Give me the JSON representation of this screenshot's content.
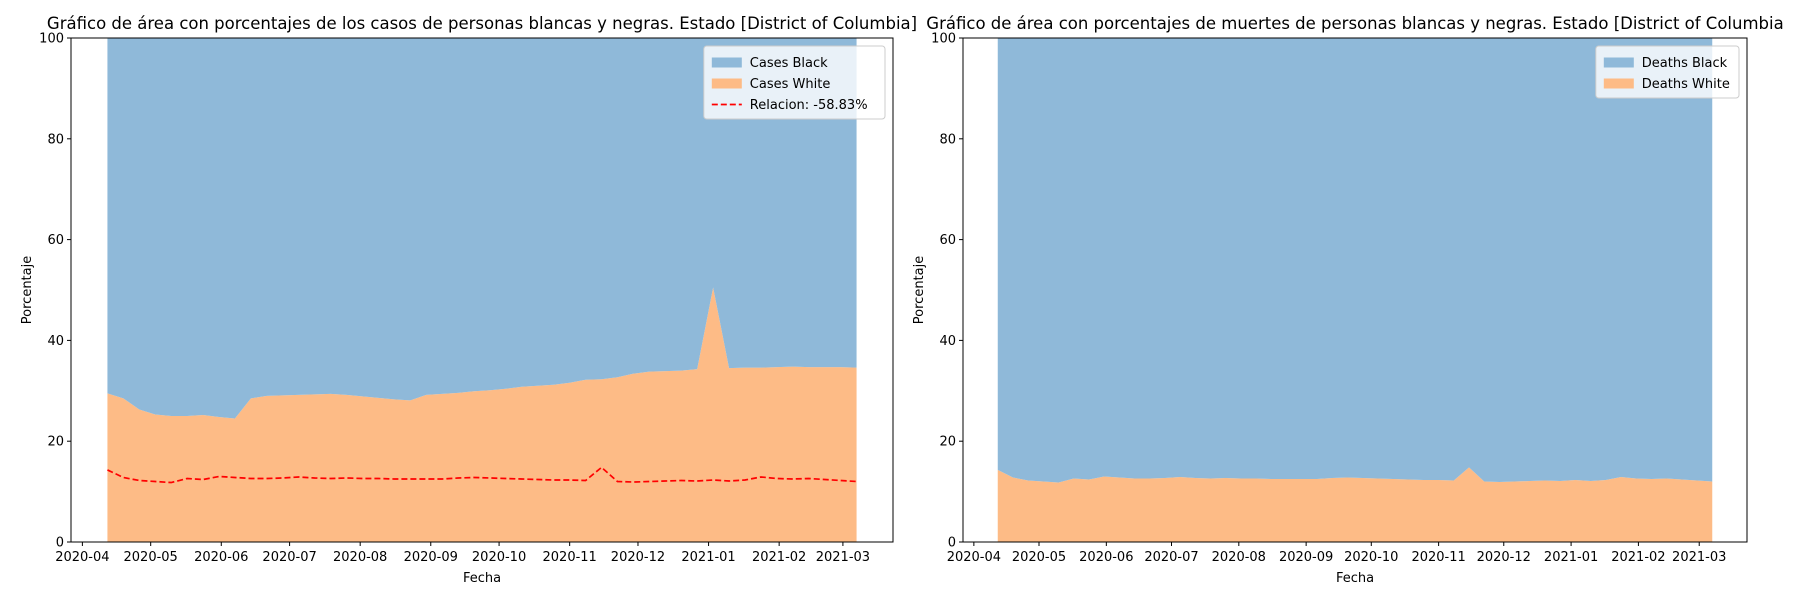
{
  "chart_data": [
    {
      "type": "area",
      "stacked": true,
      "title": "Gráfico de área con porcentajes de los casos de personas blancas y negras. Estado [District of Columbia]",
      "x_label": "Fecha",
      "y_label": "Porcentaje",
      "x": [
        "2020-04-12",
        "2020-04-19",
        "2020-04-26",
        "2020-05-03",
        "2020-05-10",
        "2020-05-17",
        "2020-05-24",
        "2020-05-31",
        "2020-06-07",
        "2020-06-14",
        "2020-06-21",
        "2020-06-28",
        "2020-07-05",
        "2020-07-12",
        "2020-07-19",
        "2020-07-26",
        "2020-08-02",
        "2020-08-09",
        "2020-08-16",
        "2020-08-23",
        "2020-08-30",
        "2020-09-06",
        "2020-09-13",
        "2020-09-20",
        "2020-09-27",
        "2020-10-04",
        "2020-10-11",
        "2020-10-18",
        "2020-10-25",
        "2020-11-01",
        "2020-11-08",
        "2020-11-15",
        "2020-11-22",
        "2020-11-29",
        "2020-12-06",
        "2020-12-13",
        "2020-12-20",
        "2020-12-27",
        "2021-01-03",
        "2021-01-10",
        "2021-01-17",
        "2021-01-24",
        "2021-01-31",
        "2021-02-07",
        "2021-02-14",
        "2021-02-21",
        "2021-02-28",
        "2021-03-07"
      ],
      "series": [
        {
          "name": "Cases Black",
          "color": "#8fb9d9",
          "values": [
            70.5,
            71.5,
            73.7,
            74.7,
            75.0,
            75.0,
            74.8,
            75.2,
            75.5,
            71.5,
            71.0,
            70.9,
            70.8,
            70.7,
            70.6,
            70.8,
            71.1,
            71.4,
            71.7,
            71.9,
            70.8,
            70.6,
            70.4,
            70.1,
            69.9,
            69.6,
            69.2,
            69.0,
            68.8,
            68.4,
            67.8,
            67.7,
            67.3,
            66.6,
            66.2,
            66.1,
            66.0,
            65.7,
            49.5,
            65.5,
            65.4,
            65.4,
            65.3,
            65.2,
            65.3,
            65.3,
            65.3,
            65.4
          ]
        },
        {
          "name": "Cases White",
          "color": "#fdbb86",
          "values": [
            29.5,
            28.5,
            26.3,
            25.3,
            25.0,
            25.0,
            25.2,
            24.8,
            24.5,
            28.5,
            29.0,
            29.1,
            29.2,
            29.3,
            29.4,
            29.2,
            28.9,
            28.6,
            28.3,
            28.1,
            29.2,
            29.4,
            29.6,
            29.9,
            30.1,
            30.4,
            30.8,
            31.0,
            31.2,
            31.6,
            32.2,
            32.3,
            32.7,
            33.4,
            33.8,
            33.9,
            34.0,
            34.3,
            50.5,
            34.5,
            34.6,
            34.6,
            34.7,
            34.8,
            34.7,
            34.7,
            34.7,
            34.6
          ]
        },
        {
          "name": "Relacion: -58.83%",
          "type": "line",
          "style": "dashed",
          "color": "#ff0000",
          "values": [
            14.3,
            12.8,
            12.2,
            12.0,
            11.8,
            12.6,
            12.4,
            13.0,
            12.8,
            12.6,
            12.6,
            12.7,
            12.9,
            12.7,
            12.6,
            12.7,
            12.6,
            12.6,
            12.5,
            12.5,
            12.5,
            12.5,
            12.7,
            12.8,
            12.7,
            12.6,
            12.5,
            12.4,
            12.3,
            12.3,
            12.2,
            14.8,
            12.0,
            11.9,
            12.0,
            12.1,
            12.2,
            12.1,
            12.3,
            12.1,
            12.3,
            12.9,
            12.6,
            12.5,
            12.6,
            12.4,
            12.2,
            12.0
          ]
        }
      ],
      "xlim": [
        "2020-03-27",
        "2021-03-23"
      ],
      "xticks": [
        {
          "value": "2020-04-01",
          "label": "2020-04"
        },
        {
          "value": "2020-05-01",
          "label": "2020-05"
        },
        {
          "value": "2020-06-01",
          "label": "2020-06"
        },
        {
          "value": "2020-07-01",
          "label": "2020-07"
        },
        {
          "value": "2020-08-01",
          "label": "2020-08"
        },
        {
          "value": "2020-09-01",
          "label": "2020-09"
        },
        {
          "value": "2020-10-01",
          "label": "2020-10"
        },
        {
          "value": "2020-11-01",
          "label": "2020-11"
        },
        {
          "value": "2020-12-01",
          "label": "2020-12"
        },
        {
          "value": "2021-01-01",
          "label": "2021-01"
        },
        {
          "value": "2021-02-01",
          "label": "2021-02"
        },
        {
          "value": "2021-03-01",
          "label": "2021-03"
        }
      ],
      "ylim": [
        0,
        100
      ],
      "yticks": [
        0,
        20,
        40,
        60,
        80,
        100
      ],
      "legend": "upper right"
    },
    {
      "type": "area",
      "stacked": true,
      "title": "Gráfico de área con porcentajes de muertes de personas blancas y negras. Estado [District of Columbia",
      "x_label": "Fecha",
      "y_label": "Porcentaje",
      "x": [
        "2020-04-12",
        "2020-04-19",
        "2020-04-26",
        "2020-05-03",
        "2020-05-10",
        "2020-05-17",
        "2020-05-24",
        "2020-05-31",
        "2020-06-07",
        "2020-06-14",
        "2020-06-21",
        "2020-06-28",
        "2020-07-05",
        "2020-07-12",
        "2020-07-19",
        "2020-07-26",
        "2020-08-02",
        "2020-08-09",
        "2020-08-16",
        "2020-08-23",
        "2020-08-30",
        "2020-09-06",
        "2020-09-13",
        "2020-09-20",
        "2020-09-27",
        "2020-10-04",
        "2020-10-11",
        "2020-10-18",
        "2020-10-25",
        "2020-11-01",
        "2020-11-08",
        "2020-11-15",
        "2020-11-22",
        "2020-11-29",
        "2020-12-06",
        "2020-12-13",
        "2020-12-20",
        "2020-12-27",
        "2021-01-03",
        "2021-01-10",
        "2021-01-17",
        "2021-01-24",
        "2021-01-31",
        "2021-02-07",
        "2021-02-14",
        "2021-02-21",
        "2021-02-28",
        "2021-03-07"
      ],
      "series": [
        {
          "name": "Deaths Black",
          "color": "#8fb9d9",
          "values": [
            85.7,
            87.2,
            87.8,
            88.0,
            88.2,
            87.4,
            87.6,
            87.0,
            87.2,
            87.4,
            87.4,
            87.3,
            87.1,
            87.3,
            87.4,
            87.3,
            87.4,
            87.4,
            87.5,
            87.5,
            87.5,
            87.5,
            87.3,
            87.2,
            87.3,
            87.4,
            87.5,
            87.6,
            87.7,
            87.7,
            87.8,
            85.2,
            88.0,
            88.1,
            88.0,
            87.9,
            87.8,
            87.9,
            87.7,
            87.9,
            87.7,
            87.1,
            87.4,
            87.5,
            87.4,
            87.6,
            87.8,
            88.0
          ]
        },
        {
          "name": "Deaths White",
          "color": "#fdbb86",
          "values": [
            14.3,
            12.8,
            12.2,
            12.0,
            11.8,
            12.6,
            12.4,
            13.0,
            12.8,
            12.6,
            12.6,
            12.7,
            12.9,
            12.7,
            12.6,
            12.7,
            12.6,
            12.6,
            12.5,
            12.5,
            12.5,
            12.5,
            12.7,
            12.8,
            12.7,
            12.6,
            12.5,
            12.4,
            12.3,
            12.3,
            12.2,
            14.8,
            12.0,
            11.9,
            12.0,
            12.1,
            12.2,
            12.1,
            12.3,
            12.1,
            12.3,
            12.9,
            12.6,
            12.5,
            12.6,
            12.4,
            12.2,
            12.0
          ]
        }
      ],
      "xlim": [
        "2020-03-27",
        "2021-03-23"
      ],
      "xticks": [
        {
          "value": "2020-04-01",
          "label": "2020-04"
        },
        {
          "value": "2020-05-01",
          "label": "2020-05"
        },
        {
          "value": "2020-06-01",
          "label": "2020-06"
        },
        {
          "value": "2020-07-01",
          "label": "2020-07"
        },
        {
          "value": "2020-08-01",
          "label": "2020-08"
        },
        {
          "value": "2020-09-01",
          "label": "2020-09"
        },
        {
          "value": "2020-10-01",
          "label": "2020-10"
        },
        {
          "value": "2020-11-01",
          "label": "2020-11"
        },
        {
          "value": "2020-12-01",
          "label": "2020-12"
        },
        {
          "value": "2021-01-01",
          "label": "2021-01"
        },
        {
          "value": "2021-02-01",
          "label": "2021-02"
        },
        {
          "value": "2021-03-01",
          "label": "2021-03"
        }
      ],
      "ylim": [
        0,
        100
      ],
      "yticks": [
        0,
        20,
        40,
        60,
        80,
        100
      ],
      "legend": "upper right"
    }
  ]
}
